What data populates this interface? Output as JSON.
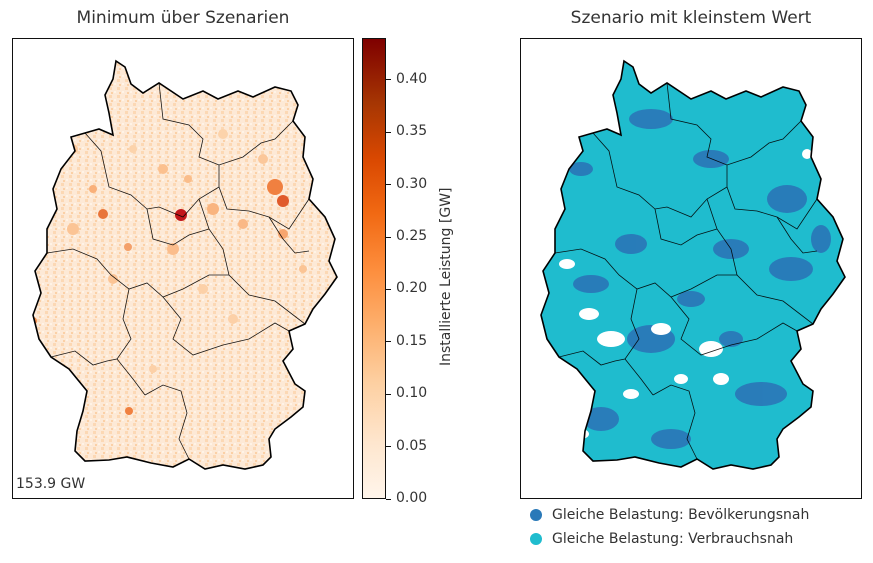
{
  "left_panel": {
    "title": "Minimum über Szenarien",
    "total_label": "153.9 GW"
  },
  "colorbar": {
    "label": "Installierte Leistung [GW]",
    "ticks": [
      "0.00",
      "0.05",
      "0.10",
      "0.15",
      "0.20",
      "0.25",
      "0.30",
      "0.35",
      "0.40"
    ],
    "range": [
      0,
      0.44
    ],
    "colors": [
      "#fff5eb",
      "#fee6ce",
      "#fdd0a2",
      "#fdae6b",
      "#fd8d3c",
      "#f16913",
      "#d94801",
      "#a63603",
      "#7f2704"
    ]
  },
  "right_panel": {
    "title": "Szenario mit kleinstem Wert"
  },
  "legend": [
    {
      "label": "Gleiche Belastung: Bevölkerungsnah",
      "color": "#2a79b8"
    },
    {
      "label": "Gleiche Belastung: Verbrauchsnah",
      "color": "#1fbcce"
    }
  ]
}
